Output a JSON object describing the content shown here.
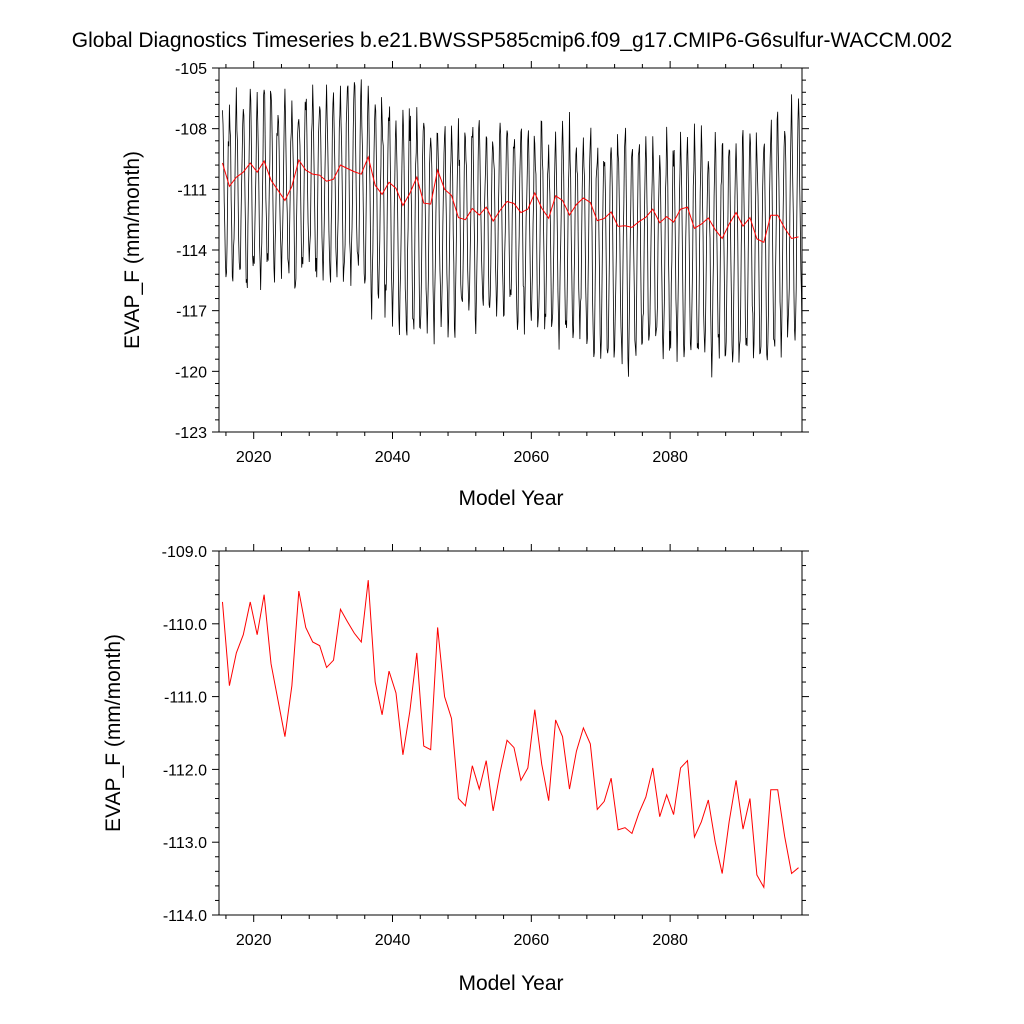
{
  "title": "Global Diagnostics Timeseries b.e21.BWSSP585cmip6.f09_g17.CMIP6-G6sulfur-WACCM.002",
  "colors": {
    "monthly": "#000000",
    "annual": "#ff0000"
  },
  "chart_data": [
    {
      "type": "line",
      "xlabel": "Model Year",
      "ylabel": "EVAP_F (mm/month)",
      "xlim": [
        2015,
        2099
      ],
      "ylim": [
        -123,
        -105
      ],
      "x_ticks": [
        2020,
        2040,
        2060,
        2080
      ],
      "x_tick_labels": [
        "2020",
        "2040",
        "2060",
        "2080"
      ],
      "y_ticks": [
        -123,
        -120,
        -117,
        -114,
        -111,
        -108,
        -105
      ],
      "y_tick_labels": [
        "-123",
        "-120",
        "-117",
        "-114",
        "-111",
        "-108",
        "-105"
      ],
      "series": [
        {
          "color": "#000000",
          "resolution": "monthly",
          "x_start": 2015.5,
          "annual_cycle_peak_to_trough_by_year": [
            [
              2015,
              8.0
            ],
            [
              2025,
              8.8
            ],
            [
              2035,
              9.6
            ],
            [
              2045,
              8.8
            ],
            [
              2055,
              8.8
            ],
            [
              2065,
              9.2
            ],
            [
              2075,
              9.2
            ],
            [
              2085,
              10.0
            ],
            [
              2099,
              10.0
            ]
          ],
          "peak_values_by_year": [
            [
              2016,
              -106.2
            ],
            [
              2023,
              -106.0
            ],
            [
              2031,
              -105.8
            ],
            [
              2036,
              -105.2
            ],
            [
              2044,
              -106.8
            ],
            [
              2055,
              -107.2
            ],
            [
              2067,
              -107.4
            ],
            [
              2078,
              -107.8
            ],
            [
              2090,
              -108.0
            ],
            [
              2099,
              -106.0
            ]
          ],
          "trough_values_by_year": [
            [
              2016,
              -116.6
            ],
            [
              2025,
              -116.0
            ],
            [
              2034,
              -116.0
            ],
            [
              2041,
              -118.9
            ],
            [
              2055,
              -117.8
            ],
            [
              2070,
              -120.0
            ],
            [
              2087,
              -120.0
            ],
            [
              2093,
              -120.3
            ],
            [
              2098,
              -119.0
            ]
          ]
        },
        {
          "color": "#ff0000",
          "resolution": "annual",
          "x_start": 2015.5,
          "values": []
        }
      ]
    },
    {
      "type": "line",
      "xlabel": "Model Year",
      "ylabel": "EVAP_F (mm/month)",
      "xlim": [
        2015,
        2099
      ],
      "ylim": [
        -114.0,
        -109.0
      ],
      "x_ticks": [
        2020,
        2040,
        2060,
        2080
      ],
      "x_tick_labels": [
        "2020",
        "2040",
        "2060",
        "2080"
      ],
      "y_ticks": [
        -114.0,
        -113.0,
        -112.0,
        -111.0,
        -110.0,
        -109.0
      ],
      "y_tick_labels": [
        "-114.0",
        "-113.0",
        "-112.0",
        "-111.0",
        "-110.0",
        "-109.0"
      ],
      "series": [
        {
          "color": "#ff0000",
          "resolution": "annual",
          "x_start": 2015.5,
          "values": [
            -109.7,
            -110.85,
            -110.4,
            -110.15,
            -109.7,
            -110.15,
            -109.6,
            -110.55,
            -111.05,
            -111.55,
            -110.85,
            -109.55,
            -110.05,
            -110.25,
            -110.3,
            -110.6,
            -110.5,
            -109.8,
            -109.97,
            -110.13,
            -110.25,
            -109.4,
            -110.8,
            -111.25,
            -110.65,
            -110.95,
            -111.8,
            -111.2,
            -110.4,
            -111.68,
            -111.73,
            -110.05,
            -111.0,
            -111.3,
            -112.4,
            -112.5,
            -111.95,
            -112.27,
            -111.88,
            -112.57,
            -112.04,
            -111.6,
            -111.7,
            -112.15,
            -111.98,
            -111.18,
            -111.93,
            -112.43,
            -111.32,
            -111.55,
            -112.27,
            -111.75,
            -111.43,
            -111.65,
            -112.55,
            -112.44,
            -112.12,
            -112.83,
            -112.8,
            -112.88,
            -112.6,
            -112.38,
            -111.98,
            -112.65,
            -112.35,
            -112.62,
            -111.98,
            -111.88,
            -112.93,
            -112.72,
            -112.42,
            -113.0,
            -113.43,
            -112.72,
            -112.15,
            -112.82,
            -112.4,
            -113.45,
            -113.62,
            -112.28,
            -112.28,
            -112.92,
            -113.43,
            -113.35
          ]
        }
      ]
    }
  ]
}
